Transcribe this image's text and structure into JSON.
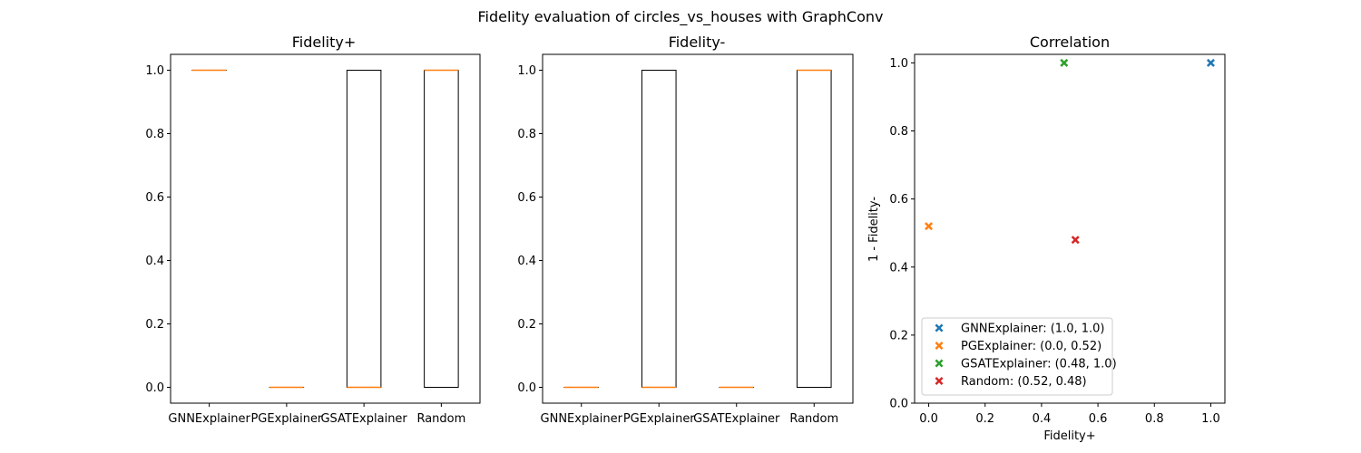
{
  "figure": {
    "suptitle": "Fidelity evaluation of circles_vs_houses with GraphConv"
  },
  "chart_data": [
    {
      "type": "box",
      "title": "Fidelity+",
      "categories": [
        "GNNExplainer",
        "PGExplainer",
        "GSATExplainer",
        "Random"
      ],
      "boxes": [
        {
          "q1": 1.0,
          "median": 1.0,
          "q3": 1.0,
          "whislo": 1.0,
          "whishi": 1.0
        },
        {
          "q1": 0.0,
          "median": 0.0,
          "q3": 0.0,
          "whislo": 0.0,
          "whishi": 0.0
        },
        {
          "q1": 0.0,
          "median": 0.0,
          "q3": 1.0,
          "whislo": 0.0,
          "whishi": 1.0
        },
        {
          "q1": 0.0,
          "median": 1.0,
          "q3": 1.0,
          "whislo": 0.0,
          "whishi": 1.0
        }
      ],
      "ylim": [
        -0.05,
        1.05
      ],
      "yticks": [
        "0.0",
        "0.2",
        "0.4",
        "0.6",
        "0.8",
        "1.0"
      ],
      "colors": {
        "box": "#000000",
        "median": "#ff7f0e"
      }
    },
    {
      "type": "box",
      "title": "Fidelity-",
      "categories": [
        "GNNExplainer",
        "PGExplainer",
        "GSATExplainer",
        "Random"
      ],
      "boxes": [
        {
          "q1": 0.0,
          "median": 0.0,
          "q3": 0.0,
          "whislo": 0.0,
          "whishi": 0.0
        },
        {
          "q1": 0.0,
          "median": 0.0,
          "q3": 1.0,
          "whislo": 0.0,
          "whishi": 1.0
        },
        {
          "q1": 0.0,
          "median": 0.0,
          "q3": 0.0,
          "whislo": 0.0,
          "whishi": 0.0
        },
        {
          "q1": 0.0,
          "median": 1.0,
          "q3": 1.0,
          "whislo": 0.0,
          "whishi": 1.0
        }
      ],
      "ylim": [
        -0.05,
        1.05
      ],
      "yticks": [
        "0.0",
        "0.2",
        "0.4",
        "0.6",
        "0.8",
        "1.0"
      ],
      "colors": {
        "box": "#000000",
        "median": "#ff7f0e"
      }
    },
    {
      "type": "scatter",
      "title": "Correlation",
      "xlabel": "Fidelity+",
      "ylabel": "1 - Fidelity-",
      "xlim": [
        -0.05,
        1.05
      ],
      "ylim": [
        0.0,
        1.025
      ],
      "xticks": [
        "0.0",
        "0.2",
        "0.4",
        "0.6",
        "0.8",
        "1.0"
      ],
      "yticks": [
        "0.0",
        "0.2",
        "0.4",
        "0.6",
        "0.8",
        "1.0"
      ],
      "legend_position": "lower-left",
      "series": [
        {
          "name": "GNNExplainer: (1.0, 1.0)",
          "x": 1.0,
          "y": 1.0,
          "color": "#1f77b4"
        },
        {
          "name": "PGExplainer: (0.0, 0.52)",
          "x": 0.0,
          "y": 0.52,
          "color": "#ff7f0e"
        },
        {
          "name": "GSATExplainer: (0.48, 1.0)",
          "x": 0.48,
          "y": 1.0,
          "color": "#2ca02c"
        },
        {
          "name": "Random: (0.52, 0.48)",
          "x": 0.52,
          "y": 0.48,
          "color": "#d62728"
        }
      ]
    }
  ]
}
